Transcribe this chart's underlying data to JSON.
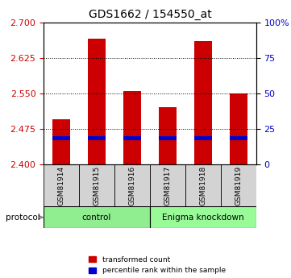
{
  "title": "GDS1662 / 154550_at",
  "samples": [
    "GSM81914",
    "GSM81915",
    "GSM81916",
    "GSM81917",
    "GSM81918",
    "GSM81919"
  ],
  "transformed_counts": [
    2.495,
    2.665,
    2.555,
    2.52,
    2.66,
    2.55
  ],
  "percentile_values": [
    2.455,
    2.455,
    2.455,
    2.455,
    2.455,
    2.455
  ],
  "bar_bottom": 2.4,
  "bar_color": "#cc0000",
  "percentile_color": "#0000cc",
  "ylim_left": [
    2.4,
    2.7
  ],
  "ylim_right": [
    0,
    100
  ],
  "yticks_left": [
    2.4,
    2.475,
    2.55,
    2.625,
    2.7
  ],
  "yticks_right": [
    0,
    25,
    50,
    75,
    100
  ],
  "ytick_labels_right": [
    "0",
    "25",
    "50",
    "75",
    "100%"
  ],
  "groups": [
    {
      "label": "control",
      "start": 0,
      "end": 3,
      "color": "#90ee90"
    },
    {
      "label": "Enigma knockdown",
      "start": 3,
      "end": 6,
      "color": "#98fb98"
    }
  ],
  "protocol_label": "protocol",
  "legend_entries": [
    {
      "label": "transformed count",
      "color": "#cc0000"
    },
    {
      "label": "percentile rank within the sample",
      "color": "#0000cc"
    }
  ],
  "bar_width": 0.5,
  "grid_color": "black",
  "bg_color": "white",
  "tick_label_color_left": "#cc0000",
  "tick_label_color_right": "#0000cc"
}
